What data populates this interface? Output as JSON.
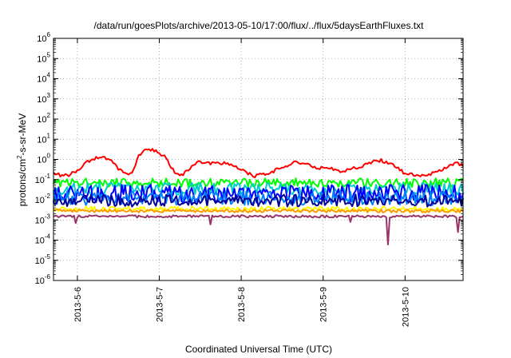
{
  "chart_data": {
    "type": "line",
    "title": "/data/run/goesPlots/archive/2013-05-10/17:00/flux/../flux/5daysEarthFluxes.txt",
    "xlabel": "Coordinated Universal Time (UTC)",
    "ylabel": {
      "prefix": "protons/cm",
      "superscript": "2",
      "suffix": "-s-sr-MeV"
    },
    "y_scale": "log",
    "ylim": [
      1e-06,
      1000000.0
    ],
    "y_ticks": [
      {
        "value": 1e-06,
        "base": "10",
        "exp": "-6"
      },
      {
        "value": 1e-05,
        "base": "10",
        "exp": "-5"
      },
      {
        "value": 0.0001,
        "base": "10",
        "exp": "-4"
      },
      {
        "value": 0.001,
        "base": "10",
        "exp": "-3"
      },
      {
        "value": 0.01,
        "base": "10",
        "exp": "-2"
      },
      {
        "value": 0.1,
        "base": "10",
        "exp": "-1"
      },
      {
        "value": 1.0,
        "base": "10",
        "exp": "0"
      },
      {
        "value": 10.0,
        "base": "10",
        "exp": "1"
      },
      {
        "value": 100.0,
        "base": "10",
        "exp": "2"
      },
      {
        "value": 1000.0,
        "base": "10",
        "exp": "3"
      },
      {
        "value": 10000.0,
        "base": "10",
        "exp": "4"
      },
      {
        "value": 100000.0,
        "base": "10",
        "exp": "5"
      },
      {
        "value": 1000000.0,
        "base": "10",
        "exp": "6"
      }
    ],
    "xlim": [
      "2013-05-05 17:00",
      "2013-05-10 17:00"
    ],
    "x_ticks": [
      {
        "date": "2013-05-06 00:00",
        "label": "2013-5-6"
      },
      {
        "date": "2013-05-07 00:00",
        "label": "2013-5-7"
      },
      {
        "date": "2013-05-08 00:00",
        "label": "2013-5-8"
      },
      {
        "date": "2013-05-09 00:00",
        "label": "2013-5-9"
      },
      {
        "date": "2013-05-10 00:00",
        "label": "2013-5-10"
      }
    ],
    "grid": true,
    "legend": "none",
    "series": [
      {
        "color": "#ff0000",
        "noise": 0.08,
        "points": [
          [
            "2013-05-05 17:00",
            0.2
          ],
          [
            "2013-05-05 20:00",
            0.15
          ],
          [
            "2013-05-05 22:00",
            0.18
          ],
          [
            "2013-05-06 00:00",
            0.3
          ],
          [
            "2013-05-06 04:00",
            1.0
          ],
          [
            "2013-05-06 07:00",
            1.5
          ],
          [
            "2013-05-06 10:00",
            0.8
          ],
          [
            "2013-05-06 12:00",
            0.35
          ],
          [
            "2013-05-06 14:00",
            0.18
          ],
          [
            "2013-05-06 16:00",
            0.2
          ],
          [
            "2013-05-06 18:00",
            1.5
          ],
          [
            "2013-05-06 20:00",
            3.5
          ],
          [
            "2013-05-06 23:00",
            2.5
          ],
          [
            "2013-05-07 02:00",
            1.2
          ],
          [
            "2013-05-07 04:00",
            0.3
          ],
          [
            "2013-05-07 06:00",
            0.15
          ],
          [
            "2013-05-07 08:00",
            0.25
          ],
          [
            "2013-05-07 10:00",
            0.5
          ],
          [
            "2013-05-07 12:00",
            0.8
          ],
          [
            "2013-05-07 16:00",
            0.6
          ],
          [
            "2013-05-07 20:00",
            0.7
          ],
          [
            "2013-05-08 00:00",
            0.3
          ],
          [
            "2013-05-08 04:00",
            0.15
          ],
          [
            "2013-05-08 08:00",
            0.2
          ],
          [
            "2013-05-08 12:00",
            0.4
          ],
          [
            "2013-05-08 16:00",
            0.8
          ],
          [
            "2013-05-08 19:00",
            0.6
          ],
          [
            "2013-05-08 22:00",
            0.4
          ],
          [
            "2013-05-09 02:00",
            0.35
          ],
          [
            "2013-05-09 06:00",
            0.25
          ],
          [
            "2013-05-09 10:00",
            0.4
          ],
          [
            "2013-05-09 14:00",
            0.7
          ],
          [
            "2013-05-09 17:00",
            0.9
          ],
          [
            "2013-05-09 20:00",
            0.6
          ],
          [
            "2013-05-10 00:00",
            0.2
          ],
          [
            "2013-05-10 04:00",
            0.15
          ],
          [
            "2013-05-10 08:00",
            0.2
          ],
          [
            "2013-05-10 12:00",
            0.4
          ],
          [
            "2013-05-10 15:00",
            0.7
          ],
          [
            "2013-05-10 17:00",
            0.5
          ]
        ]
      },
      {
        "color": "#00ff00",
        "base": 0.07,
        "noise": 0.22
      },
      {
        "color": "#00cccc",
        "base": 0.035,
        "noise": 0.3
      },
      {
        "color": "#0000ff",
        "base": 0.02,
        "noise": 0.45
      },
      {
        "color": "#0080ff",
        "base": 0.012,
        "noise": 0.35
      },
      {
        "color": "#000099",
        "base": 0.009,
        "noise": 0.3
      },
      {
        "color": "#ffff00",
        "base": 0.0035,
        "noise": 0.12
      },
      {
        "color": "#ff9900",
        "base": 0.0028,
        "noise": 0.08
      },
      {
        "color": "#993366",
        "base": 0.0015,
        "noise": 0.06,
        "dips": [
          [
            "2013-05-05 23:30",
            0.0007
          ],
          [
            "2013-05-07 15:00",
            0.0006
          ],
          [
            "2013-05-09 08:00",
            0.0008
          ],
          [
            "2013-05-09 19:00",
            6e-05
          ],
          [
            "2013-05-10 15:30",
            0.00025
          ]
        ]
      }
    ]
  }
}
